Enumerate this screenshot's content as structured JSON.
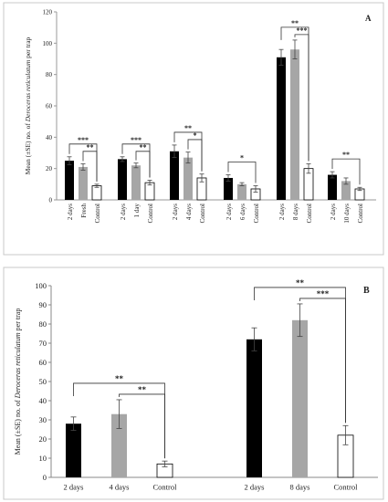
{
  "chart_data": [
    {
      "type": "bar",
      "panel_label": "A",
      "ylabel": "Mean (±SE) no. of Deroceras reticulatum per trap",
      "ylabel_parts": [
        "Mean (±SE) no. of ",
        "Deroceras reticulatum",
        " per trap"
      ],
      "ylim": [
        0,
        120
      ],
      "yticks": [
        0,
        20,
        40,
        60,
        80,
        100,
        120
      ],
      "grid": false,
      "legend": "none",
      "groups": [
        {
          "bars": [
            {
              "label": "2 days",
              "value": 25,
              "se": 2.5,
              "color": "#000000"
            },
            {
              "label": "Fresh",
              "value": 21,
              "se": 2,
              "color": "#a6a6a6"
            },
            {
              "label": "Control",
              "value": 9,
              "se": 1,
              "color": "#ffffff"
            }
          ],
          "significance": [
            {
              "from": 0,
              "to": 2,
              "text": "***"
            },
            {
              "from": 1,
              "to": 2,
              "text": "**"
            }
          ]
        },
        {
          "bars": [
            {
              "label": "2 days",
              "value": 26,
              "se": 1.5,
              "color": "#000000"
            },
            {
              "label": "1 day",
              "value": 22,
              "se": 1.5,
              "color": "#a6a6a6"
            },
            {
              "label": "Control",
              "value": 11,
              "se": 1.5,
              "color": "#ffffff"
            }
          ],
          "significance": [
            {
              "from": 0,
              "to": 2,
              "text": "***"
            },
            {
              "from": 1,
              "to": 2,
              "text": "**"
            }
          ]
        },
        {
          "bars": [
            {
              "label": "2 days",
              "value": 31,
              "se": 4,
              "color": "#000000"
            },
            {
              "label": "4 days",
              "value": 27,
              "se": 3.5,
              "color": "#a6a6a6"
            },
            {
              "label": "Control",
              "value": 14,
              "se": 2.5,
              "color": "#ffffff"
            }
          ],
          "significance": [
            {
              "from": 0,
              "to": 2,
              "text": "**"
            },
            {
              "from": 1,
              "to": 2,
              "text": "*"
            }
          ]
        },
        {
          "bars": [
            {
              "label": "2 days",
              "value": 14,
              "se": 2,
              "color": "#000000"
            },
            {
              "label": "6 days",
              "value": 10,
              "se": 1,
              "color": "#a6a6a6"
            },
            {
              "label": "Control",
              "value": 7,
              "se": 2,
              "color": "#ffffff"
            }
          ],
          "significance": [
            {
              "from": 0,
              "to": 2,
              "text": "*"
            }
          ]
        },
        {
          "bars": [
            {
              "label": "2 days",
              "value": 91,
              "se": 5,
              "color": "#000000"
            },
            {
              "label": "8 days",
              "value": 96,
              "se": 6,
              "color": "#a6a6a6"
            },
            {
              "label": "Control",
              "value": 20,
              "se": 3,
              "color": "#ffffff"
            }
          ],
          "significance": [
            {
              "from": 0,
              "to": 2,
              "text": "**"
            },
            {
              "from": 1,
              "to": 2,
              "text": "***"
            }
          ]
        },
        {
          "bars": [
            {
              "label": "2 days",
              "value": 16,
              "se": 2,
              "color": "#000000"
            },
            {
              "label": "10 days",
              "value": 12,
              "se": 2,
              "color": "#a6a6a6"
            },
            {
              "label": "Control",
              "value": 7,
              "se": 1,
              "color": "#ffffff"
            }
          ],
          "significance": [
            {
              "from": 0,
              "to": 2,
              "text": "**"
            }
          ]
        }
      ]
    },
    {
      "type": "bar",
      "panel_label": "B",
      "ylabel": "Mean (±SE) no. of Deroceras reticulatum per trap",
      "ylabel_parts": [
        "Mean (±SE) no. of ",
        "Deroceras reticulatum",
        " per trap"
      ],
      "ylim": [
        0,
        100
      ],
      "yticks": [
        0,
        10,
        20,
        30,
        40,
        50,
        60,
        70,
        80,
        90,
        100
      ],
      "grid": false,
      "legend": "none",
      "groups": [
        {
          "bars": [
            {
              "label": "2 days",
              "value": 28,
              "se": 3.5,
              "color": "#000000"
            },
            {
              "label": "4 days",
              "value": 33,
              "se": 7.5,
              "color": "#a6a6a6"
            },
            {
              "label": "Control",
              "value": 7,
              "se": 1.5,
              "color": "#ffffff"
            }
          ],
          "significance": [
            {
              "from": 0,
              "to": 2,
              "text": "**"
            },
            {
              "from": 1,
              "to": 2,
              "text": "**"
            }
          ]
        },
        {
          "bars": [
            {
              "label": "2 days",
              "value": 72,
              "se": 6,
              "color": "#000000"
            },
            {
              "label": "8 days",
              "value": 82,
              "se": 8.5,
              "color": "#a6a6a6"
            },
            {
              "label": "Control",
              "value": 22,
              "se": 5,
              "color": "#ffffff"
            }
          ],
          "significance": [
            {
              "from": 0,
              "to": 2,
              "text": "**"
            },
            {
              "from": 1,
              "to": 2,
              "text": "***"
            }
          ]
        }
      ]
    }
  ]
}
